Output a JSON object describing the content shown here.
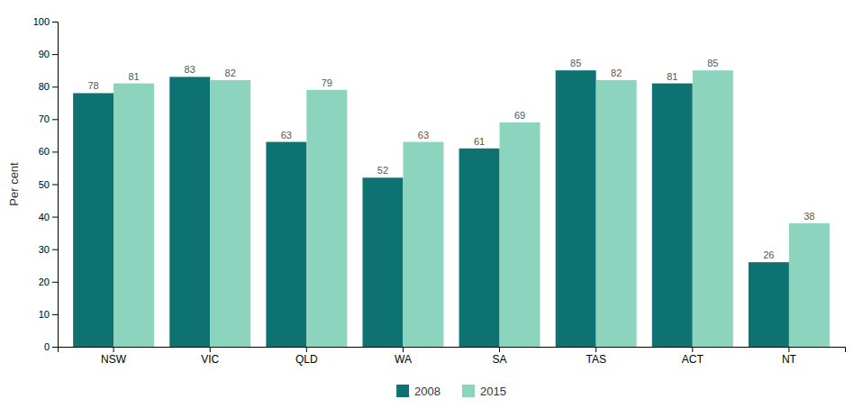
{
  "chart_data": {
    "type": "bar",
    "categories": [
      "NSW",
      "VIC",
      "QLD",
      "WA",
      "SA",
      "TAS",
      "ACT",
      "NT"
    ],
    "series": [
      {
        "name": "2008",
        "color": "#0e7272",
        "values": [
          78,
          83,
          63,
          52,
          61,
          85,
          81,
          26
        ]
      },
      {
        "name": "2015",
        "color": "#8dd4bf",
        "values": [
          81,
          82,
          79,
          63,
          69,
          82,
          85,
          38
        ]
      }
    ],
    "ylabel": "Per cent",
    "ylim": [
      0,
      100
    ],
    "yticks": [
      0,
      10,
      20,
      30,
      40,
      50,
      60,
      70,
      80,
      90,
      100
    ],
    "grid": false,
    "legend": "bottom",
    "data_labels": true
  }
}
